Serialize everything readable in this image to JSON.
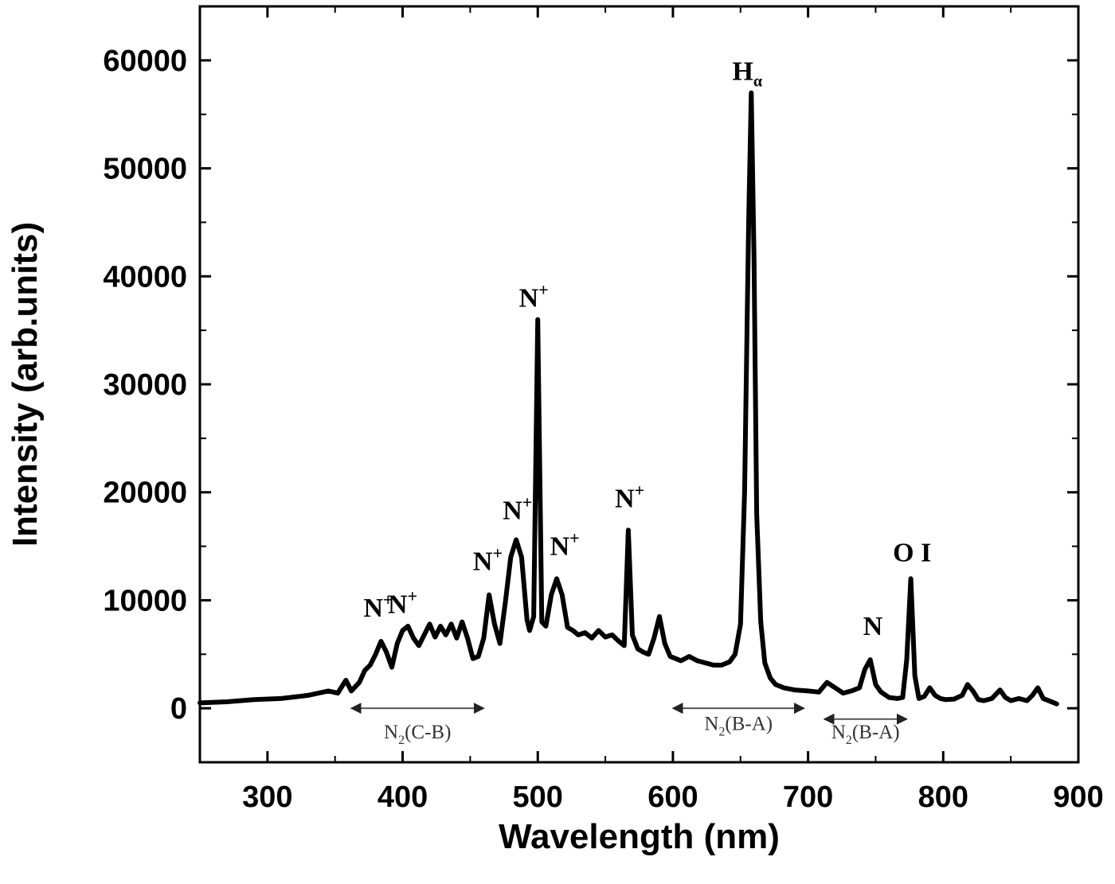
{
  "chart_data": {
    "type": "line",
    "title": "",
    "xlabel": "Wavelength (nm)",
    "ylabel": "Intensity (arb.units)",
    "xlim": [
      250,
      900
    ],
    "ylim": [
      -5000,
      65000
    ],
    "xticks": [
      300,
      400,
      500,
      600,
      700,
      800,
      900
    ],
    "xtick_labels": [
      "300",
      "400",
      "500",
      "600",
      "700",
      "800",
      "900"
    ],
    "yticks": [
      0,
      10000,
      20000,
      30000,
      40000,
      50000,
      60000
    ],
    "ytick_labels": [
      "0",
      "10000",
      "20000",
      "30000",
      "40000",
      "50000",
      "60000"
    ],
    "grid": false,
    "series": [
      {
        "x": [
          250,
          270,
          290,
          310,
          330,
          345,
          352,
          358,
          362,
          368,
          372,
          376,
          380,
          384,
          388,
          392,
          396,
          400,
          404,
          408,
          412,
          416,
          420,
          424,
          428,
          432,
          436,
          440,
          444,
          448,
          452,
          456,
          460,
          464,
          468,
          472,
          476,
          480,
          484,
          488,
          492,
          494,
          497,
          500,
          503,
          506,
          510,
          514,
          518,
          522,
          526,
          530,
          535,
          540,
          545,
          550,
          555,
          560,
          564,
          567,
          570,
          574,
          578,
          582,
          586,
          590,
          594,
          598,
          602,
          606,
          612,
          618,
          624,
          630,
          636,
          642,
          646,
          650,
          653,
          656,
          658,
          660,
          662,
          665,
          668,
          672,
          676,
          682,
          690,
          700,
          708,
          714,
          720,
          726,
          732,
          738,
          742,
          746,
          750,
          754,
          760,
          766,
          770,
          773,
          776,
          779,
          782,
          786,
          790,
          794,
          798,
          802,
          808,
          814,
          818,
          822,
          826,
          830,
          836,
          842,
          846,
          850,
          856,
          862,
          866,
          870,
          874,
          878,
          884
        ],
        "y": [
          500,
          600,
          800,
          900,
          1200,
          1600,
          1400,
          2600,
          1600,
          2400,
          3500,
          4000,
          5000,
          6200,
          5200,
          3800,
          6000,
          7200,
          7600,
          6500,
          5800,
          6800,
          7800,
          6600,
          7600,
          6800,
          7800,
          6500,
          8000,
          6500,
          4600,
          4800,
          6500,
          10500,
          7800,
          6000,
          9800,
          14000,
          15600,
          14000,
          8200,
          7200,
          8500,
          36000,
          8000,
          7600,
          10500,
          12000,
          10500,
          7500,
          7200,
          6800,
          7000,
          6500,
          7200,
          6600,
          6800,
          6200,
          5800,
          16500,
          6800,
          5500,
          5200,
          5000,
          6500,
          8500,
          6000,
          4800,
          4600,
          4400,
          4800,
          4400,
          4200,
          4000,
          4000,
          4300,
          5000,
          7800,
          20000,
          45000,
          57000,
          42000,
          18000,
          8000,
          4200,
          2800,
          2200,
          1900,
          1700,
          1600,
          1500,
          2400,
          1900,
          1400,
          1600,
          1900,
          3600,
          4500,
          2200,
          1500,
          1000,
          900,
          1000,
          4500,
          12000,
          3000,
          900,
          1100,
          1900,
          1200,
          900,
          800,
          850,
          1200,
          2200,
          1600,
          800,
          700,
          900,
          1700,
          1000,
          700,
          900,
          700,
          1200,
          1900,
          900,
          700,
          400
        ]
      }
    ],
    "annotations": [
      {
        "text": "N",
        "sup": "+",
        "x": 382,
        "y": 8500
      },
      {
        "text": "N",
        "sup": "+",
        "x": 400,
        "y": 8800
      },
      {
        "text": "N",
        "sup": "+",
        "x": 463,
        "y": 12800
      },
      {
        "text": "N",
        "sup": "+",
        "x": 485,
        "y": 17500
      },
      {
        "text": "N",
        "sup": "+",
        "x": 497,
        "y": 37200
      },
      {
        "text": "N",
        "sup": "+",
        "x": 520,
        "y": 14200
      },
      {
        "text": "N",
        "sup": "+",
        "x": 568,
        "y": 18600
      },
      {
        "text": "H",
        "sub": "α",
        "x": 655,
        "y": 58200
      },
      {
        "text": "N",
        "x": 748,
        "y": 6800
      },
      {
        "text": "O I",
        "x": 777,
        "y": 13600
      }
    ],
    "band_annotations": [
      {
        "text": "N",
        "sub": "2",
        "rest": "(C-B)",
        "x_start": 362,
        "x_end": 460,
        "y": 0,
        "label_y": -2800
      },
      {
        "text": "N",
        "sub": "2",
        "rest": "(B-A)",
        "x_start": 600,
        "x_end": 697,
        "y": 0,
        "label_y": -2000
      },
      {
        "text": "N",
        "sub": "2",
        "rest": "(B-A)",
        "x_start": 712,
        "x_end": 773,
        "y": -1000,
        "label_y": -2800
      }
    ]
  }
}
